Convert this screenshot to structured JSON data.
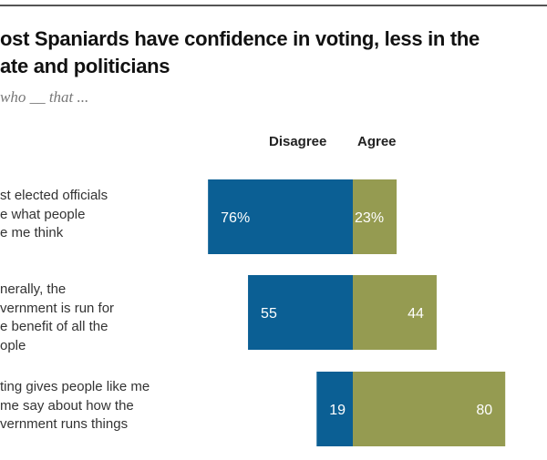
{
  "title_lines": [
    "ost Spaniards have confidence in voting, less in the",
    "ate and politicians"
  ],
  "subtitle": "who __ that ...",
  "chart_data": {
    "type": "bar",
    "orientation": "horizontal-diverging",
    "legend": [
      "Disagree",
      "Agree"
    ],
    "categories": [
      [
        "st elected officials",
        "e what people",
        "e me think"
      ],
      [
        "nerally, the",
        "vernment is run for",
        "e benefit of all the",
        "ople"
      ],
      [
        "ting gives people like me",
        "me say about how the",
        "vernment runs things"
      ]
    ],
    "series": [
      {
        "name": "Disagree",
        "values": [
          76,
          55,
          19
        ],
        "labels": [
          "76%",
          "55",
          "19"
        ],
        "color": "#0b5f94"
      },
      {
        "name": "Agree",
        "values": [
          23,
          44,
          80
        ],
        "labels": [
          "23%",
          "44",
          "80"
        ],
        "color": "#959b51"
      }
    ],
    "grid": false
  }
}
